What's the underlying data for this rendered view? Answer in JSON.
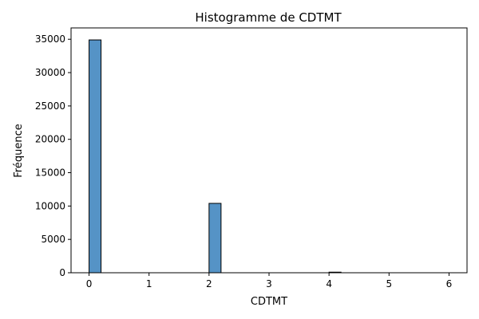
{
  "chart_data": {
    "type": "bar",
    "title": "Histogramme de CDTMT",
    "xlabel": "CDTMT",
    "ylabel": "Fréquence",
    "xlim": [
      -0.3,
      6.3
    ],
    "ylim": [
      0,
      36700
    ],
    "xticks": [
      0,
      1,
      2,
      3,
      4,
      5,
      6
    ],
    "yticks": [
      0,
      5000,
      10000,
      15000,
      20000,
      25000,
      30000,
      35000
    ],
    "bin_width": 0.2,
    "bars": [
      {
        "x_start": 0.0,
        "x_end": 0.2,
        "value": 34900
      },
      {
        "x_start": 2.0,
        "x_end": 2.2,
        "value": 10400
      },
      {
        "x_start": 4.0,
        "x_end": 4.2,
        "value": 90
      }
    ],
    "bar_color": "#5593c6",
    "grid": false,
    "legend": "none"
  }
}
